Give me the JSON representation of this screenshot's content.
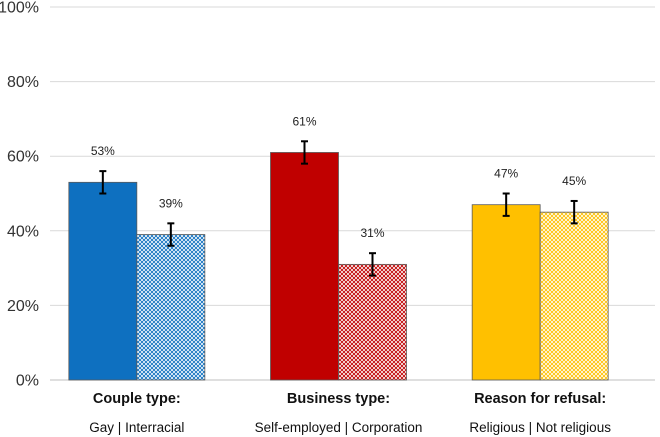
{
  "chart_data": {
    "type": "bar",
    "ylim": [
      0,
      100
    ],
    "yticks": [
      0,
      20,
      40,
      60,
      80,
      100
    ],
    "ytick_labels": [
      "0%",
      "20%",
      "40%",
      "60%",
      "80%",
      "100%"
    ],
    "grid": true,
    "groups": [
      {
        "title": "Couple type:",
        "subtitle": "Gay | Interracial",
        "bars": [
          {
            "value": 53,
            "label": "53%",
            "error": 3,
            "color": "#0E70C0",
            "pattern": "solid"
          },
          {
            "value": 39,
            "label": "39%",
            "error": 3,
            "color": "#0E70C0",
            "pattern": "crosshatch"
          }
        ]
      },
      {
        "title": "Business type:",
        "subtitle": "Self-employed | Corporation",
        "bars": [
          {
            "value": 61,
            "label": "61%",
            "error": 3,
            "color": "#C00000",
            "pattern": "solid"
          },
          {
            "value": 31,
            "label": "31%",
            "error": 3,
            "color": "#C00000",
            "pattern": "crosshatch"
          }
        ]
      },
      {
        "title": "Reason for refusal:",
        "subtitle": "Religious | Not religious",
        "bars": [
          {
            "value": 47,
            "label": "47%",
            "error": 3,
            "color": "#FFC000",
            "pattern": "solid"
          },
          {
            "value": 45,
            "label": "45%",
            "error": 3,
            "color": "#FFC000",
            "pattern": "crosshatch"
          }
        ]
      }
    ]
  }
}
